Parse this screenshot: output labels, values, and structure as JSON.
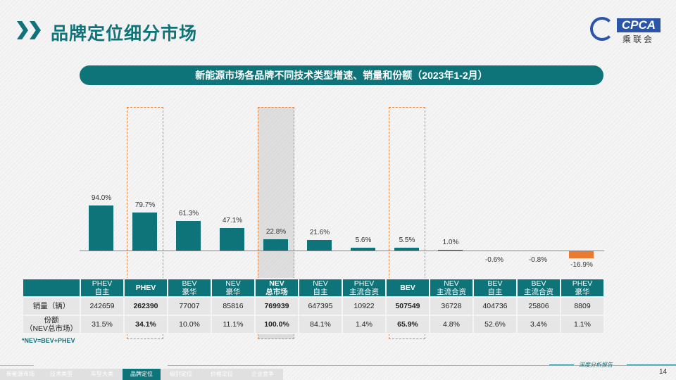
{
  "header": {
    "title": "品牌定位细分市场",
    "logo_text": "CPCA",
    "logo_cn": "乘联会"
  },
  "banner": "新能源市场各品牌不同技术类型增速、销量和份额（2023年1-2月）",
  "chart_data": {
    "type": "bar",
    "categories": [
      "PHEV 自主",
      "PHEV",
      "BEV 豪华",
      "NEV 豪华",
      "NEV 总市场",
      "NEV 自主",
      "PHEV 主流合资",
      "BEV",
      "NEV 主流合资",
      "BEV 自主",
      "BEV 主流合资",
      "PHEV 豪华"
    ],
    "values": [
      94.0,
      79.7,
      61.3,
      47.1,
      22.8,
      21.6,
      5.6,
      5.5,
      1.0,
      -0.6,
      -0.8,
      -16.9
    ],
    "data_labels": [
      "94.0%",
      "79.7%",
      "61.3%",
      "47.1%",
      "22.8%",
      "21.6%",
      "5.6%",
      "5.5%",
      "1.0%",
      "-0.6%",
      "-0.8%",
      "-16.9%"
    ],
    "highlighted": [
      "PHEV",
      "NEV 总市场",
      "BEV"
    ],
    "colors": {
      "positive": "#0f7479",
      "negative": "#ea7a30",
      "highlight_border": "#e8823a"
    }
  },
  "table": {
    "columns": [
      [
        "PHEV",
        "自主"
      ],
      [
        "PHEV",
        ""
      ],
      [
        "BEV",
        "豪华"
      ],
      [
        "NEV",
        "豪华"
      ],
      [
        "NEV",
        "总市场"
      ],
      [
        "NEV",
        "自主"
      ],
      [
        "PHEV",
        "主流合资"
      ],
      [
        "BEV",
        ""
      ],
      [
        "NEV",
        "主流合资"
      ],
      [
        "BEV",
        "自主"
      ],
      [
        "BEV",
        "主流合资"
      ],
      [
        "PHEV",
        "豪华"
      ]
    ],
    "bold": [
      1,
      4,
      7
    ],
    "rows": [
      {
        "label": [
          "销量（辆）"
        ],
        "values": [
          "242659",
          "262390",
          "77007",
          "85816",
          "769939",
          "647395",
          "10922",
          "507549",
          "36728",
          "404736",
          "25806",
          "8809"
        ]
      },
      {
        "label": [
          "份额",
          "（NEV总市场）"
        ],
        "values": [
          "31.5%",
          "34.1%",
          "10.0%",
          "11.1%",
          "100.0%",
          "84.1%",
          "1.4%",
          "65.9%",
          "4.8%",
          "52.6%",
          "3.4%",
          "1.1%"
        ]
      }
    ]
  },
  "note": "*NEV=BEV+PHEV",
  "nav": {
    "items": [
      "新能源市场",
      "技术类型",
      "车型大类",
      "品牌定位",
      "级别定位",
      "价格定位",
      "企业竞争"
    ],
    "active": 3
  },
  "footer": {
    "tagline": "深度分析报告",
    "page": "14"
  }
}
